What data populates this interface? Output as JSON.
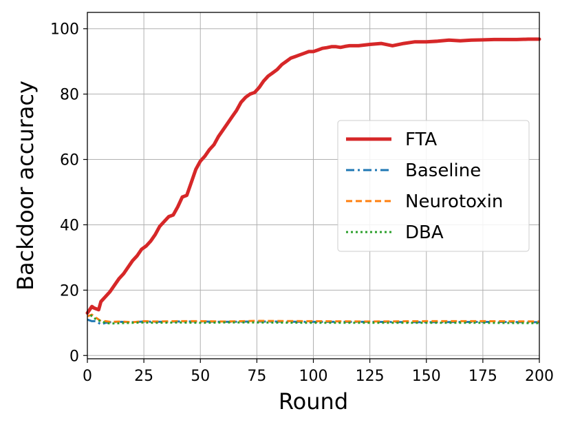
{
  "chart_data": {
    "type": "line",
    "xlabel": "Round",
    "ylabel": "Backdoor accuracy",
    "xlim": [
      0,
      200
    ],
    "ylim": [
      -1,
      105
    ],
    "xticks": [
      0,
      25,
      50,
      75,
      100,
      125,
      150,
      175,
      200
    ],
    "yticks": [
      0,
      20,
      40,
      60,
      80,
      100
    ],
    "grid": true,
    "legend_position": "center-right",
    "series": [
      {
        "name": "FTA",
        "color": "#d62728",
        "style": "solid",
        "x": [
          0,
          2,
          3,
          5,
          6,
          8,
          10,
          12,
          14,
          16,
          18,
          20,
          22,
          24,
          26,
          28,
          30,
          32,
          34,
          36,
          38,
          40,
          42,
          44,
          46,
          48,
          50,
          52,
          54,
          56,
          58,
          60,
          62,
          64,
          66,
          68,
          70,
          72,
          74,
          76,
          78,
          80,
          82,
          84,
          86,
          88,
          90,
          92,
          94,
          96,
          98,
          100,
          102,
          104,
          106,
          108,
          110,
          112,
          114,
          116,
          118,
          120,
          125,
          130,
          135,
          140,
          145,
          150,
          155,
          160,
          165,
          170,
          175,
          180,
          185,
          190,
          195,
          200
        ],
        "y": [
          13,
          15,
          14.5,
          14,
          16.5,
          18,
          19.5,
          21.5,
          23.5,
          25,
          27,
          29,
          30.5,
          32.5,
          33.5,
          35,
          37,
          39.5,
          41,
          42.5,
          43,
          45.5,
          48.5,
          49,
          53,
          57,
          59.5,
          61,
          63,
          64.5,
          67,
          69,
          71,
          73,
          75,
          77.5,
          79,
          80,
          80.5,
          82,
          84,
          85.5,
          86.5,
          87.5,
          89,
          90,
          91,
          91.5,
          92,
          92.5,
          93,
          93,
          93.5,
          94,
          94.2,
          94.5,
          94.5,
          94.3,
          94.6,
          94.8,
          94.8,
          94.8,
          95.2,
          95.5,
          94.8,
          95.5,
          96,
          96,
          96.2,
          96.5,
          96.3,
          96.5,
          96.6,
          96.7,
          96.7,
          96.7,
          96.8,
          96.8
        ]
      },
      {
        "name": "Baseline",
        "color": "#1f77b4",
        "style": "dashdot",
        "x": [
          0,
          2,
          4,
          6,
          8,
          10,
          15,
          20,
          25,
          30,
          40,
          50,
          60,
          75,
          100,
          125,
          150,
          175,
          200
        ],
        "y": [
          11,
          10.5,
          10.5,
          9.5,
          10,
          10.2,
          10.3,
          10.2,
          10.4,
          10.3,
          10.4,
          10.4,
          10.3,
          10.4,
          10.3,
          10.3,
          10.2,
          10.3,
          10.2
        ]
      },
      {
        "name": "Neurotoxin",
        "color": "#ff7f0e",
        "style": "dashed",
        "x": [
          0,
          2,
          4,
          6,
          8,
          10,
          15,
          20,
          25,
          30,
          40,
          50,
          60,
          75,
          100,
          125,
          150,
          175,
          200
        ],
        "y": [
          12,
          12.5,
          11.5,
          10.5,
          10.5,
          10.3,
          10.4,
          10.2,
          10.5,
          10.4,
          10.5,
          10.5,
          10.4,
          10.6,
          10.5,
          10.4,
          10.5,
          10.5,
          10.4
        ]
      },
      {
        "name": "DBA",
        "color": "#2ca02c",
        "style": "dotted",
        "x": [
          0,
          2,
          4,
          6,
          8,
          10,
          15,
          20,
          25,
          30,
          40,
          50,
          60,
          75,
          100,
          125,
          150,
          175,
          200
        ],
        "y": [
          13.5,
          12,
          11,
          10.5,
          10,
          9.8,
          9.9,
          10,
          10.1,
          10,
          10.1,
          10,
          10.1,
          10.1,
          10,
          10,
          10,
          10,
          9.9
        ]
      }
    ]
  }
}
